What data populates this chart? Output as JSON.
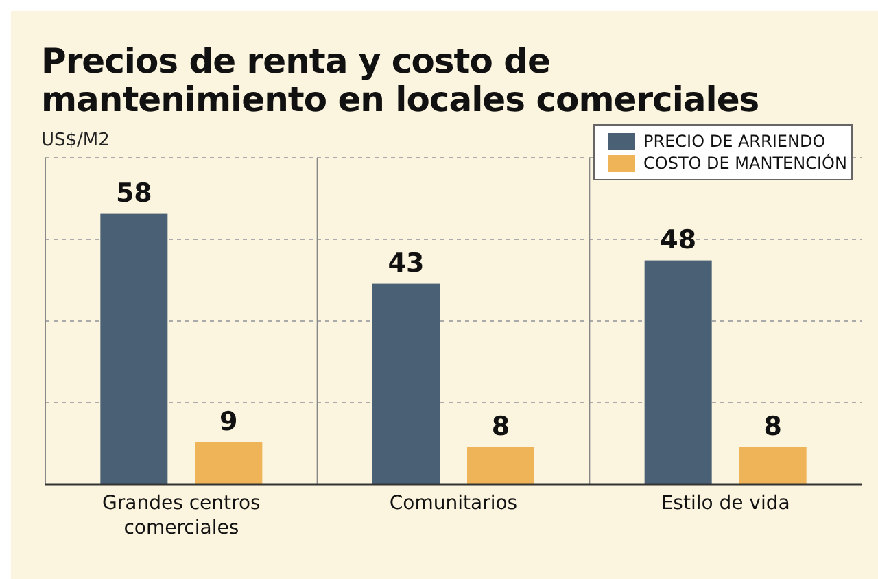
{
  "chart_data": {
    "type": "bar",
    "title": "Precios de renta y costo de mantenimiento en locales comerciales",
    "ylabel": "US$/M2",
    "categories": [
      "Grandes centros comerciales",
      "Comunitarios",
      "Estilo de vida"
    ],
    "series": [
      {
        "name": "PRECIO DE ARRIENDO",
        "color": "#4a6075",
        "values": [
          58,
          43,
          48
        ]
      },
      {
        "name": "COSTO DE MANTENCIÓN",
        "color": "#efb457",
        "values": [
          9,
          8,
          8
        ]
      }
    ],
    "ylim": [
      0,
      70
    ],
    "yticks": [
      {
        "value": 17.5,
        "label": null
      },
      {
        "value": 35,
        "label": null
      },
      {
        "value": 52.5,
        "label": null
      },
      {
        "value": 70,
        "label": null
      }
    ],
    "tick_labels": "x",
    "grid": "y",
    "legend": "top right",
    "data_labels": true
  }
}
